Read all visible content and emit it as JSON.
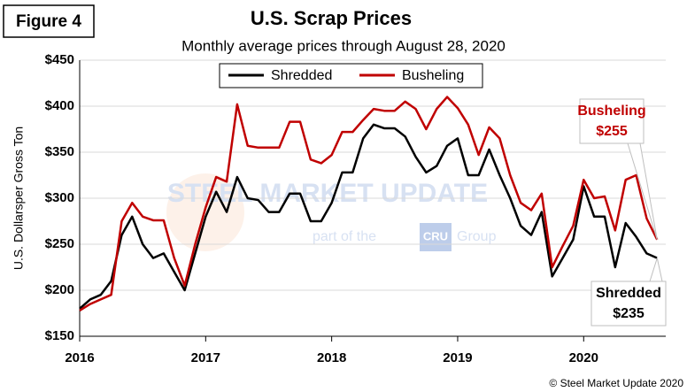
{
  "chart_data": {
    "type": "line",
    "figure_label": "Figure 4",
    "title": "U.S. Scrap Prices",
    "subtitle": "Monthly average prices through August 28, 2020",
    "ylabel": "U.S. Dollarsper Gross Ton",
    "copyright": "© Steel Market Update 2020",
    "watermark": [
      "STEEL MARKET UPDATE",
      "part of the",
      "CRU",
      "Group"
    ],
    "categories": [
      "2016",
      null,
      null,
      null,
      null,
      null,
      null,
      null,
      null,
      null,
      null,
      null,
      "2017",
      null,
      null,
      null,
      null,
      null,
      null,
      null,
      null,
      null,
      null,
      null,
      "2018",
      null,
      null,
      null,
      null,
      null,
      null,
      null,
      null,
      null,
      null,
      null,
      "2019",
      null,
      null,
      null,
      null,
      null,
      null,
      null,
      null,
      null,
      null,
      null,
      "2020",
      null,
      null,
      null,
      null,
      null,
      null,
      null
    ],
    "series": [
      {
        "name": "Shredded",
        "color": "#000000",
        "values": [
          180,
          190,
          195,
          210,
          260,
          280,
          250,
          235,
          240,
          220,
          200,
          240,
          280,
          307,
          285,
          323,
          300,
          298,
          285,
          285,
          305,
          305,
          275,
          275,
          295,
          328,
          328,
          365,
          380,
          376,
          376,
          367,
          345,
          328,
          335,
          357,
          365,
          325,
          325,
          353,
          325,
          300,
          270,
          260,
          285,
          215,
          235,
          255,
          313,
          280,
          280,
          225,
          273,
          258,
          240,
          235
        ]
      },
      {
        "name": "Busheling",
        "color": "#c00000",
        "values": [
          178,
          185,
          190,
          195,
          275,
          295,
          280,
          276,
          276,
          235,
          205,
          250,
          290,
          323,
          318,
          402,
          357,
          355,
          355,
          355,
          383,
          383,
          342,
          338,
          347,
          372,
          372,
          385,
          397,
          395,
          395,
          405,
          397,
          375,
          397,
          410,
          398,
          380,
          347,
          377,
          365,
          325,
          295,
          287,
          305,
          225,
          248,
          270,
          320,
          300,
          302,
          265,
          320,
          325,
          278,
          255
        ]
      }
    ],
    "annotations": [
      {
        "series": 1,
        "text": "Busheling",
        "value_label": "$255"
      },
      {
        "series": 0,
        "text": "Shredded",
        "value_label": "$235"
      }
    ],
    "ylim": [
      150,
      450
    ],
    "yticks": [
      {
        "value": 150,
        "label": "$150"
      },
      {
        "value": 200,
        "label": "$200"
      },
      {
        "value": 250,
        "label": "$250"
      },
      {
        "value": 300,
        "label": "$300"
      },
      {
        "value": 350,
        "label": "$350"
      },
      {
        "value": 400,
        "label": "$400"
      },
      {
        "value": 450,
        "label": "$450"
      }
    ],
    "grid": true,
    "legend": "top"
  }
}
